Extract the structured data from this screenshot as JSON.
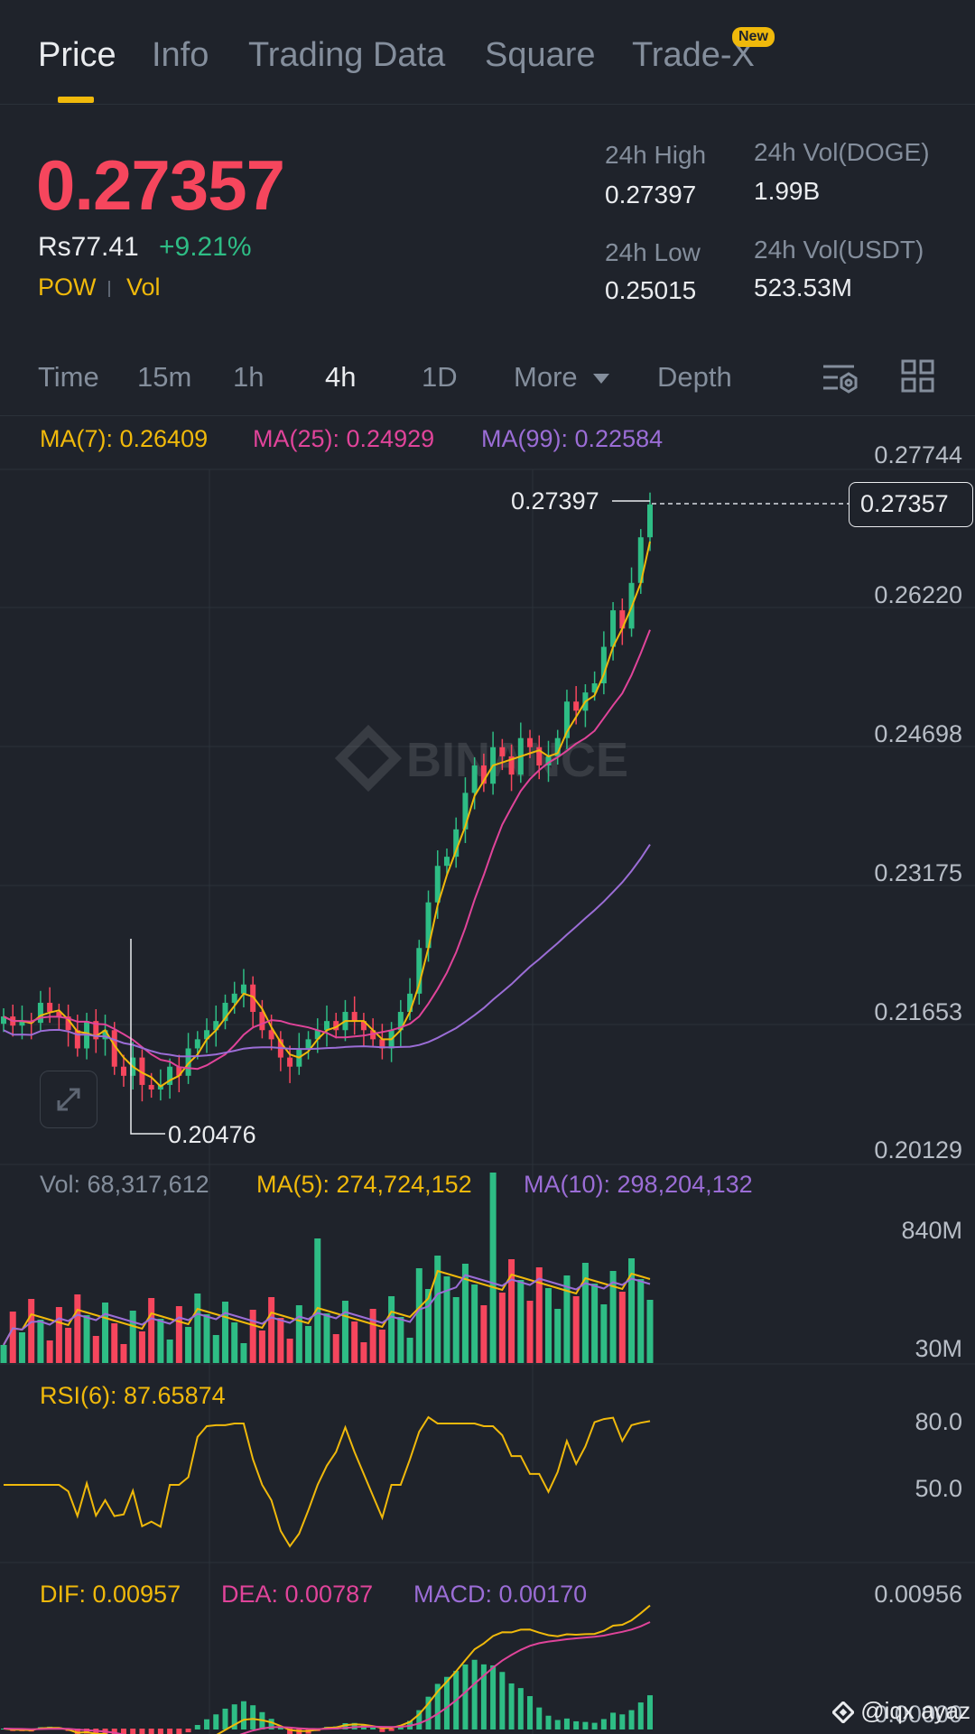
{
  "tabs": [
    {
      "label": "Price"
    },
    {
      "label": "Info"
    },
    {
      "label": "Trading Data"
    },
    {
      "label": "Square"
    },
    {
      "label": "Trade-X"
    }
  ],
  "new_badge": "New",
  "price": {
    "last": "0.27357",
    "fiat": "Rs77.41",
    "change": "+9.21%",
    "tags": [
      "POW",
      "Vol"
    ]
  },
  "stats": {
    "high_label": "24h High",
    "high_value": "0.27397",
    "low_label": "24h Low",
    "low_value": "0.25015",
    "vol_base_label": "24h Vol(DOGE)",
    "vol_base_value": "1.99B",
    "vol_quote_label": "24h Vol(USDT)",
    "vol_quote_value": "523.53M"
  },
  "intervals": {
    "items": [
      "Time",
      "15m",
      "1h",
      "4h",
      "1D",
      "More",
      "Depth"
    ],
    "active": "4h"
  },
  "main_chart": {
    "ma7": "MA(7): 0.26409",
    "ma25": "MA(25): 0.24929",
    "ma99": "MA(99): 0.22584",
    "axis": [
      "0.27744",
      "0.26220",
      "0.24698",
      "0.23175",
      "0.21653",
      "0.20129"
    ],
    "current_price_tag": "0.27357",
    "high_marker": "0.27397",
    "low_marker": "0.20476",
    "watermark": "BINANCE"
  },
  "volume": {
    "vol": "Vol: 68,317,612",
    "ma5": "MA(5): 274,724,152",
    "ma10": "MA(10): 298,204,132",
    "axis": [
      "840M",
      "30M"
    ]
  },
  "rsi": {
    "label": "RSI(6): 87.65874",
    "axis": [
      "80.0",
      "50.0"
    ]
  },
  "macd": {
    "dif": "DIF: 0.00957",
    "dea": "DEA: 0.00787",
    "macd": "MACD: 0.00170",
    "axis": [
      "0.00956",
      "0.00000"
    ]
  },
  "footer": {
    "credit": "@iqx ayaz"
  },
  "colors": {
    "up": "#2ebd85",
    "down": "#f6465d",
    "ma7": "#f0b90b",
    "ma25": "#e0449a",
    "ma99": "#9b6dd6",
    "accent": "#f0b90b"
  },
  "chart_data": {
    "type": "candlestick",
    "title": "",
    "ylim": [
      0.20129,
      0.27744
    ],
    "y_ticks": [
      0.27744,
      0.2622,
      0.24698,
      0.23175,
      0.21653,
      0.20129
    ],
    "period": "4h",
    "approx_close_series": [
      0.2175,
      0.2165,
      0.217,
      0.2168,
      0.219,
      0.218,
      0.2175,
      0.216,
      0.214,
      0.217,
      0.215,
      0.216,
      0.212,
      0.211,
      0.213,
      0.21,
      0.2095,
      0.21,
      0.212,
      0.211,
      0.214,
      0.215,
      0.216,
      0.217,
      0.219,
      0.22,
      0.221,
      0.218,
      0.216,
      0.215,
      0.213,
      0.212,
      0.214,
      0.215,
      0.216,
      0.217,
      0.216,
      0.218,
      0.217,
      0.216,
      0.215,
      0.214,
      0.216,
      0.218,
      0.22,
      0.225,
      0.23,
      0.234,
      0.235,
      0.238,
      0.242,
      0.245,
      0.243,
      0.247,
      0.246,
      0.244,
      0.248,
      0.247,
      0.245,
      0.246,
      0.248,
      0.252,
      0.251,
      0.253,
      0.254,
      0.258,
      0.262,
      0.26,
      0.265,
      0.27,
      0.2736
    ],
    "high": 0.27397,
    "low": 0.20476,
    "last": 0.27357
  }
}
